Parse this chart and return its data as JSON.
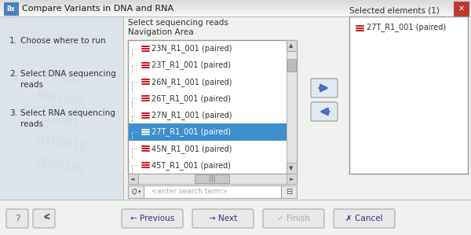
{
  "title": "Compare Variants in DNA and RNA",
  "steps": [
    [
      "1.",
      "Choose where to run"
    ],
    [
      "2.",
      "Select DNA sequencing\nreads"
    ],
    [
      "3.",
      "Select RNA sequencing\nreads"
    ]
  ],
  "section_title": "Select sequencing reads",
  "nav_area_label": "Navigation Area",
  "list_items": [
    "23N_R1_001 (paired)",
    "23T_R1_001 (paired)",
    "26N_R1_001 (paired)",
    "26T_R1_001 (paired)",
    "27N_R1_001 (paired)",
    "27T_R1_001 (paired)",
    "45N_R1_001 (paired)",
    "45T_R1_001 (paired)"
  ],
  "selected_item_idx": 5,
  "selected_item_color": "#3d8fce",
  "selected_elements_label": "Selected elements (1)",
  "selected_elements": [
    "27T_R1_001 (paired)"
  ],
  "search_placeholder": "<enter search term>",
  "icon_color_red": "#cc2222",
  "dialog_bg": "#f0f0ee",
  "titlebar_bg_top": "#f8f8f8",
  "titlebar_bg_bot": "#d8d8d8",
  "left_panel_bg": "#dce3ea",
  "list_bg": "#ffffff",
  "border_color": "#aaaaaa",
  "close_btn_color": "#c0392b",
  "bx_icon_color": "#4a7fc1",
  "arrow_btn_color": "#4470b8",
  "btn_bg": "#e8e8e8",
  "btn_text_color": "#333388",
  "finish_text_color": "#aaaaaa",
  "watermark_text_color": "#d0d8e0",
  "title_text_color": "#1a1a1a",
  "nav_text_color": "#333333"
}
